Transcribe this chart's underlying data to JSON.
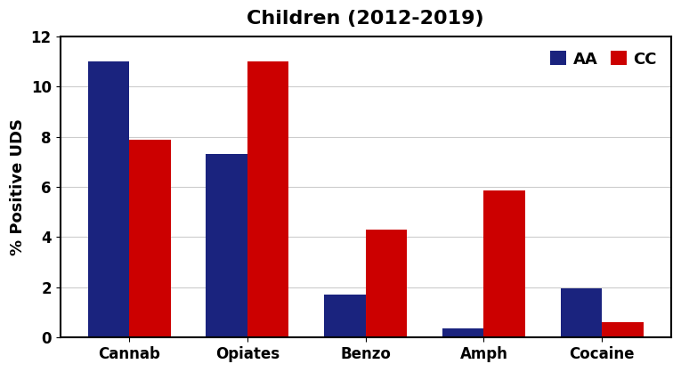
{
  "title": "Children (2012-2019)",
  "ylabel": "% Positive UDS",
  "categories": [
    "Cannab",
    "Opiates",
    "Benzo",
    "Amph",
    "Cocaine"
  ],
  "AA_values": [
    11.0,
    7.3,
    1.7,
    0.35,
    1.95
  ],
  "CC_values": [
    7.9,
    11.0,
    4.3,
    5.85,
    0.6
  ],
  "AA_color": "#1a237e",
  "CC_color": "#cc0000",
  "ylim": [
    0,
    12
  ],
  "yticks": [
    0,
    2,
    4,
    6,
    8,
    10,
    12
  ],
  "bar_width": 0.35,
  "legend_labels": [
    "AA",
    "CC"
  ],
  "title_fontsize": 16,
  "axis_fontsize": 13,
  "tick_fontsize": 12,
  "legend_fontsize": 13,
  "background_color": "#ffffff",
  "grid_color": "#cccccc"
}
